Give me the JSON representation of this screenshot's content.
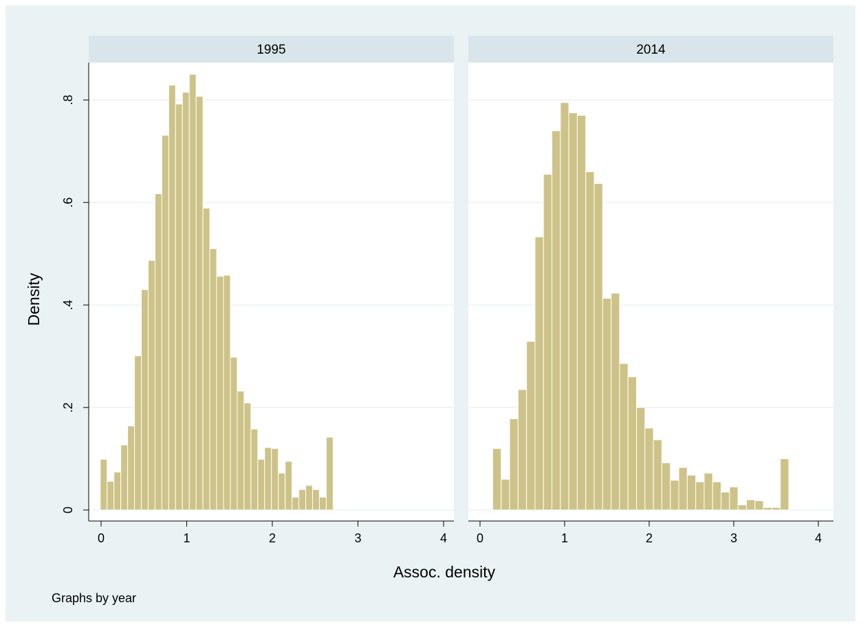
{
  "chart_data": {
    "type": "bar",
    "subtype": "histogram",
    "facet_by": "year",
    "xlabel": "Assoc. density",
    "ylabel": "Density",
    "note": "Graphs by year",
    "xlim": [
      0,
      4
    ],
    "ylim": [
      0,
      0.85
    ],
    "x_ticks": [
      0,
      1,
      2,
      3,
      4
    ],
    "x_tick_labels": [
      "0",
      "1",
      "2",
      "3",
      "4"
    ],
    "y_ticks": [
      0,
      0.2,
      0.4,
      0.6,
      0.8
    ],
    "y_tick_labels": [
      "0",
      ".2",
      ".4",
      ".6",
      ".8"
    ],
    "grid": "horizontal",
    "colors": {
      "bar_fill": "#cdc389",
      "bar_edge": "#ffffff",
      "strip": "#d9e5eb",
      "background": "#eaf2f3",
      "grid": "#eaf2f3"
    },
    "panels": [
      {
        "title": "1995",
        "bin_start": -0.01,
        "bin_width": 0.08,
        "values": [
          0.099,
          0.056,
          0.074,
          0.127,
          0.164,
          0.301,
          0.43,
          0.487,
          0.617,
          0.731,
          0.829,
          0.792,
          0.815,
          0.85,
          0.807,
          0.589,
          0.51,
          0.456,
          0.458,
          0.298,
          0.232,
          0.209,
          0.158,
          0.099,
          0.122,
          0.12,
          0.072,
          0.095,
          0.025,
          0.04,
          0.048,
          0.04,
          0.025,
          0.142
        ]
      },
      {
        "title": "2014",
        "bin_start": 0.15,
        "bin_width": 0.1,
        "values": [
          0.12,
          0.06,
          0.178,
          0.235,
          0.329,
          0.533,
          0.655,
          0.74,
          0.795,
          0.775,
          0.77,
          0.66,
          0.637,
          0.413,
          0.423,
          0.286,
          0.26,
          0.2,
          0.16,
          0.137,
          0.092,
          0.058,
          0.083,
          0.068,
          0.055,
          0.072,
          0.055,
          0.035,
          0.045,
          0.01,
          0.02,
          0.018,
          0.005,
          0.005,
          0.1
        ]
      }
    ]
  }
}
